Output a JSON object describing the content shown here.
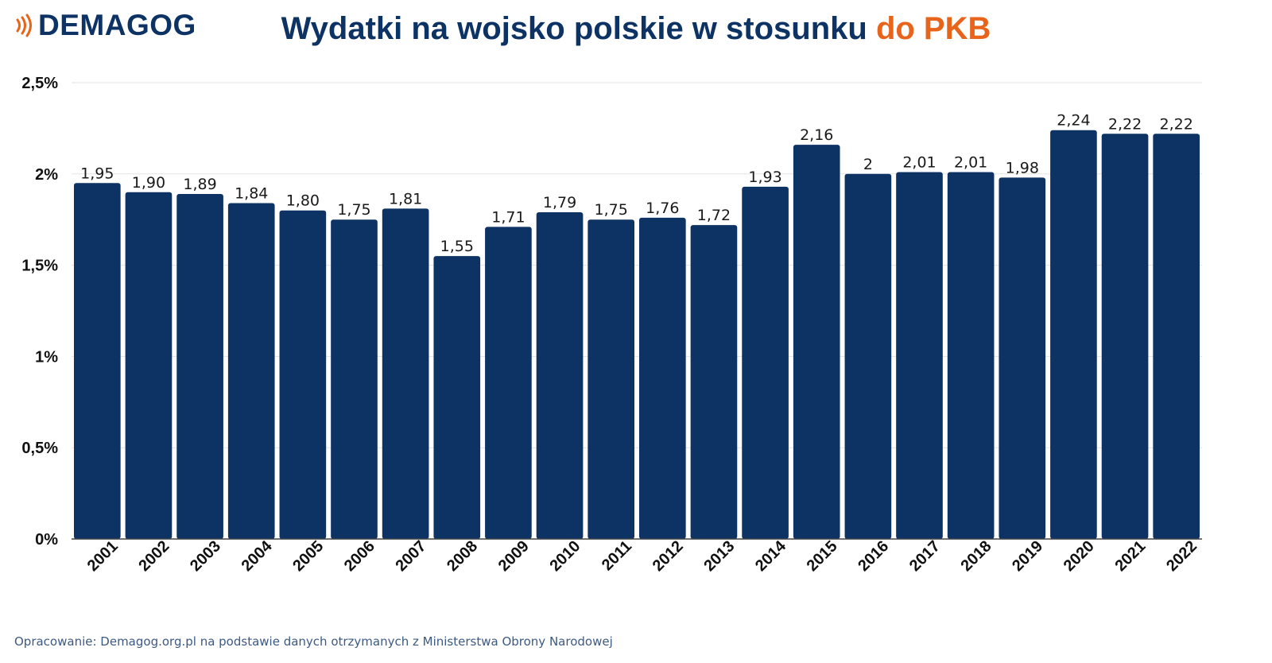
{
  "brand": {
    "name": "DEMAGOG"
  },
  "title": {
    "main": "Wydatki na wojsko polskie w stosunku",
    "accent": "do PKB"
  },
  "source": "Opracowanie: Demagog.org.pl na podstawie danych otrzymanych z Ministerstwa Obrony Narodowej",
  "colors": {
    "bar": "#0d3264",
    "title": "#0d3264",
    "accent": "#e8641b",
    "grid": "#e3e3e3",
    "axis": "#444444"
  },
  "chart_data": {
    "type": "bar",
    "title": "Wydatki na wojsko polskie w stosunku do PKB",
    "xlabel": "",
    "ylabel": "",
    "ylim": [
      0,
      2.5
    ],
    "yticks": [
      {
        "value": 0,
        "label": "0%"
      },
      {
        "value": 0.5,
        "label": "0,5%"
      },
      {
        "value": 1,
        "label": "1%"
      },
      {
        "value": 1.5,
        "label": "1,5%"
      },
      {
        "value": 2,
        "label": "2%"
      },
      {
        "value": 2.5,
        "label": "2,5%"
      }
    ],
    "grid": true,
    "categories": [
      "2001",
      "2002",
      "2003",
      "2004",
      "2005",
      "2006",
      "2007",
      "2008",
      "2009",
      "2010",
      "2011",
      "2012",
      "2013",
      "2014",
      "2015",
      "2016",
      "2017",
      "2018",
      "2019",
      "2020",
      "2021",
      "2022"
    ],
    "values": [
      1.95,
      1.9,
      1.89,
      1.84,
      1.8,
      1.75,
      1.81,
      1.55,
      1.71,
      1.79,
      1.75,
      1.76,
      1.72,
      1.93,
      2.16,
      2,
      2.01,
      2.01,
      1.98,
      2.24,
      2.22,
      2.22
    ],
    "value_labels": [
      "1,95",
      "1,90",
      "1,89",
      "1,84",
      "1,80",
      "1,75",
      "1,81",
      "1,55",
      "1,71",
      "1,79",
      "1,75",
      "1,76",
      "1,72",
      "1,93",
      "2,16",
      "2",
      "2,01",
      "2,01",
      "1,98",
      "2,24",
      "2,22",
      "2,22"
    ]
  }
}
